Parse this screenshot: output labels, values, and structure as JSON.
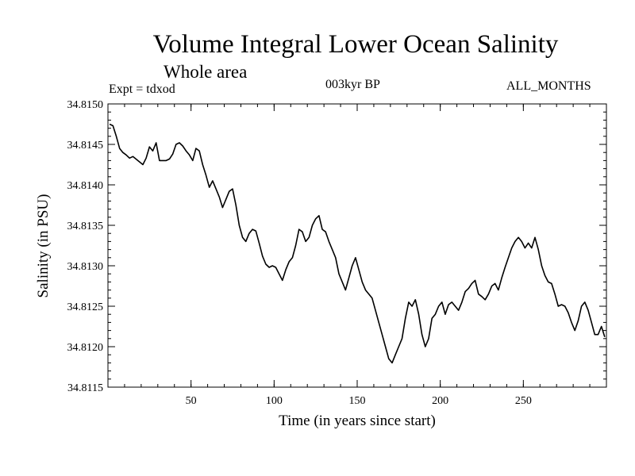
{
  "chart_data": {
    "type": "line",
    "title": "Volume Integral Lower Ocean Salinity",
    "subtitle": "Whole area",
    "annotations": {
      "experiment": "Expt = tdxod",
      "period": "003kyr BP",
      "months": "ALL_MONTHS"
    },
    "xlabel": "Time (in years since start)",
    "ylabel": "Salinity (in PSU)",
    "xlim": [
      0,
      300
    ],
    "ylim": [
      34.8115,
      34.815
    ],
    "xticks": [
      50,
      100,
      150,
      200,
      250
    ],
    "xtick_labels": [
      "50",
      "100",
      "150",
      "200",
      "250"
    ],
    "yticks": [
      34.8115,
      34.812,
      34.8125,
      34.813,
      34.8135,
      34.814,
      34.8145,
      34.815
    ],
    "ytick_labels": [
      "34.8115",
      "34.8120",
      "34.8125",
      "34.8130",
      "34.8135",
      "34.8140",
      "34.8145",
      "34.8150"
    ],
    "grid": false,
    "series": [
      {
        "name": "Salinity",
        "color": "#000000",
        "x": [
          1,
          3,
          5,
          7,
          9,
          11,
          13,
          15,
          18,
          21,
          23,
          25,
          27,
          29,
          31,
          33,
          35,
          37,
          39,
          41,
          43,
          45,
          47,
          49,
          51,
          53,
          55,
          57,
          59,
          61,
          63,
          65,
          67,
          69,
          71,
          73,
          75,
          77,
          79,
          81,
          83,
          85,
          87,
          89,
          91,
          93,
          95,
          97,
          99,
          101,
          103,
          105,
          107,
          109,
          111,
          113,
          115,
          117,
          119,
          121,
          123,
          125,
          127,
          129,
          131,
          133,
          135,
          137,
          139,
          141,
          143,
          145,
          147,
          149,
          151,
          153,
          155,
          157,
          159,
          161,
          163,
          165,
          167,
          169,
          171,
          173,
          175,
          177,
          179,
          181,
          183,
          185,
          187,
          189,
          191,
          193,
          195,
          197,
          199,
          201,
          203,
          205,
          207,
          209,
          211,
          213,
          215,
          217,
          219,
          221,
          223,
          225,
          227,
          229,
          231,
          233,
          235,
          237,
          239,
          241,
          243,
          245,
          247,
          249,
          251,
          253,
          255,
          257,
          259,
          261,
          263,
          265,
          267,
          269,
          271,
          273,
          275,
          277,
          279,
          281,
          283,
          285,
          287,
          289,
          291,
          293,
          295,
          297,
          299
        ],
        "values": [
          34.81475,
          34.81473,
          34.8146,
          34.81445,
          34.8144,
          34.81437,
          34.81433,
          34.81435,
          34.8143,
          34.81425,
          34.81433,
          34.81447,
          34.81442,
          34.81452,
          34.8143,
          34.8143,
          34.8143,
          34.81432,
          34.81438,
          34.8145,
          34.81452,
          34.81448,
          34.81442,
          34.81437,
          34.8143,
          34.81445,
          34.81442,
          34.81425,
          34.81412,
          34.81397,
          34.81405,
          34.81395,
          34.81385,
          34.81372,
          34.81382,
          34.81392,
          34.81395,
          34.81375,
          34.8135,
          34.81335,
          34.8133,
          34.8134,
          34.81345,
          34.81343,
          34.81328,
          34.81312,
          34.81302,
          34.81298,
          34.813,
          34.81298,
          34.8129,
          34.81282,
          34.81295,
          34.81305,
          34.8131,
          34.81325,
          34.81345,
          34.81342,
          34.8133,
          34.81335,
          34.8135,
          34.81358,
          34.81362,
          34.81345,
          34.81342,
          34.8133,
          34.8132,
          34.8131,
          34.8129,
          34.8128,
          34.8127,
          34.81285,
          34.813,
          34.8131,
          34.81295,
          34.8128,
          34.8127,
          34.81265,
          34.8126,
          34.81245,
          34.8123,
          34.81215,
          34.812,
          34.81185,
          34.8118,
          34.8119,
          34.812,
          34.8121,
          34.81235,
          34.81255,
          34.8125,
          34.81258,
          34.8124,
          34.81215,
          34.812,
          34.8121,
          34.81235,
          34.8124,
          34.8125,
          34.81255,
          34.8124,
          34.81252,
          34.81255,
          34.8125,
          34.81245,
          34.81255,
          34.81268,
          34.81272,
          34.81278,
          34.81282,
          34.81265,
          34.81262,
          34.81258,
          34.81265,
          34.81275,
          34.81278,
          34.8127,
          34.81285,
          34.81298,
          34.8131,
          34.81322,
          34.8133,
          34.81335,
          34.8133,
          34.81322,
          34.81328,
          34.81322,
          34.81335,
          34.8132,
          34.813,
          34.81288,
          34.8128,
          34.81278,
          34.81265,
          34.8125,
          34.81252,
          34.8125,
          34.81242,
          34.8123,
          34.8122,
          34.81232,
          34.8125,
          34.81255,
          34.81245,
          34.8123,
          34.81215,
          34.81215,
          34.81225,
          34.81212
        ]
      }
    ]
  }
}
